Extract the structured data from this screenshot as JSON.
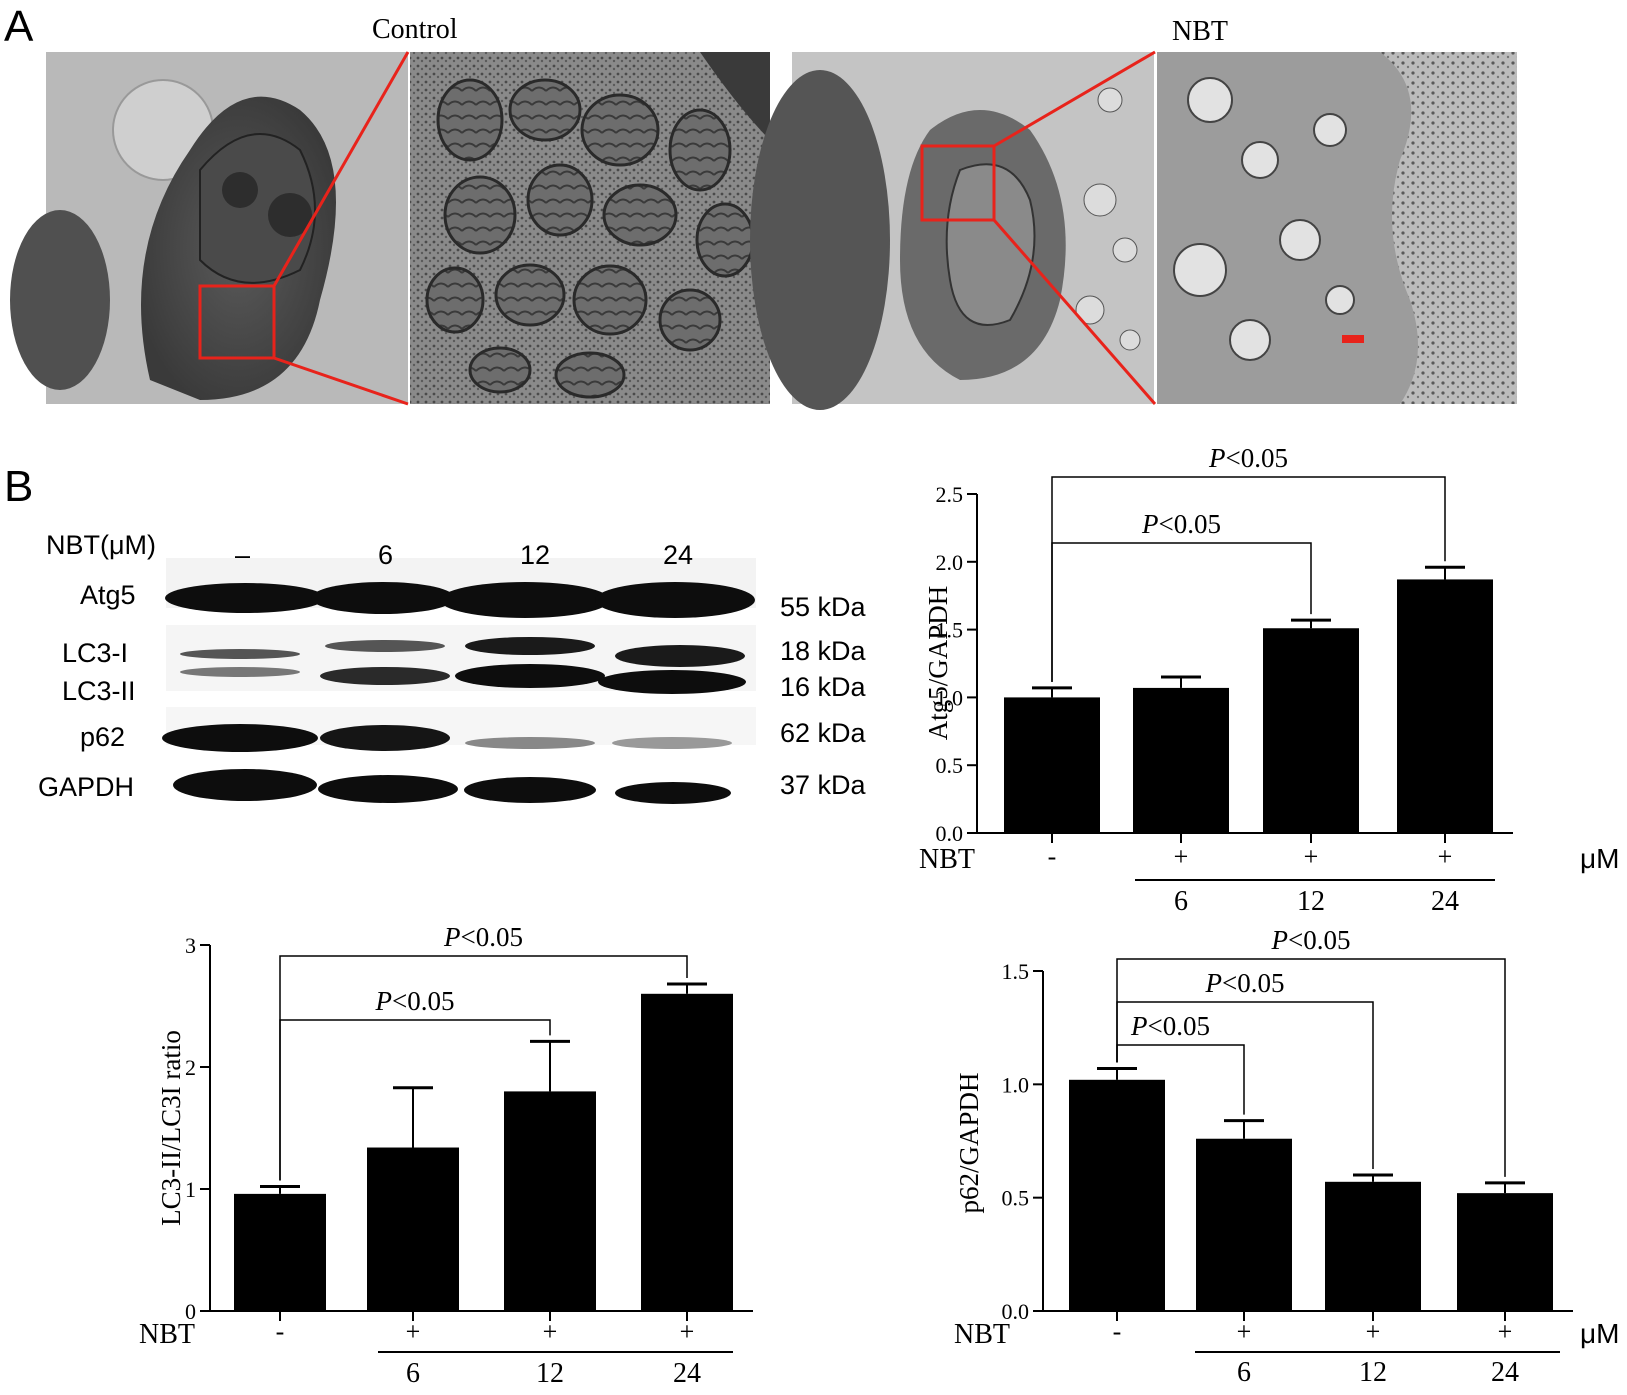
{
  "panel_a": {
    "letter": "A",
    "control_title": "Control",
    "nbt_title": "NBT"
  },
  "panel_b": {
    "letter": "B",
    "blot": {
      "header_label": "NBT(μM)",
      "lanes": [
        "–",
        "6",
        "12",
        "24"
      ],
      "rows": [
        {
          "label": "Atg5",
          "kda": "55 kDa"
        },
        {
          "label": "LC3-I",
          "kda": "18 kDa"
        },
        {
          "label": "LC3-II",
          "kda": "16 kDa"
        },
        {
          "label": "p62",
          "kda": "62 kDa"
        },
        {
          "label": "GAPDH",
          "kda": "37 kDa"
        }
      ]
    }
  },
  "colors": {
    "bar": "#000000",
    "roi": "#e8231b",
    "em_bg": "#bdbdbd"
  },
  "chart_data": [
    {
      "type": "bar",
      "ylabel": "Atg5/GAPDH",
      "ylim": [
        0,
        2.5
      ],
      "yticks": [
        "0.0",
        "0.5",
        "1.0",
        "1.5",
        "2.0",
        "2.5"
      ],
      "categories": [
        "-",
        "6",
        "12",
        "24"
      ],
      "values": [
        1.0,
        1.07,
        1.51,
        1.87
      ],
      "errors": [
        0.07,
        0.08,
        0.06,
        0.09
      ],
      "treatment_label": "NBT",
      "treatment_marks": [
        "-",
        "+",
        "+",
        "+"
      ],
      "unit": "μM",
      "significance": [
        {
          "from": 0,
          "to": 2,
          "label": "P<0.05"
        },
        {
          "from": 0,
          "to": 3,
          "label": "P<0.05"
        }
      ]
    },
    {
      "type": "bar",
      "ylabel": "LC3-II/LC3I ratio",
      "ylim": [
        0,
        3
      ],
      "yticks": [
        "0",
        "1",
        "2",
        "3"
      ],
      "categories": [
        "-",
        "6",
        "12",
        "24"
      ],
      "values": [
        0.96,
        1.34,
        1.8,
        2.6
      ],
      "errors": [
        0.06,
        0.49,
        0.41,
        0.08
      ],
      "treatment_label": "NBT",
      "treatment_marks": [
        "-",
        "+",
        "+",
        "+"
      ],
      "unit": "",
      "significance": [
        {
          "from": 0,
          "to": 2,
          "label": "P<0.05"
        },
        {
          "from": 0,
          "to": 3,
          "label": "P<0.05"
        }
      ]
    },
    {
      "type": "bar",
      "ylabel": "p62/GAPDH",
      "ylim": [
        0,
        1.5
      ],
      "yticks": [
        "0.0",
        "0.5",
        "1.0",
        "1.5"
      ],
      "categories": [
        "-",
        "6",
        "12",
        "24"
      ],
      "values": [
        1.02,
        0.76,
        0.57,
        0.52
      ],
      "errors": [
        0.05,
        0.08,
        0.03,
        0.045
      ],
      "treatment_label": "NBT",
      "treatment_marks": [
        "-",
        "+",
        "+",
        "+"
      ],
      "unit": "μM",
      "significance": [
        {
          "from": 0,
          "to": 1,
          "label": "P<0.05"
        },
        {
          "from": 0,
          "to": 2,
          "label": "P<0.05"
        },
        {
          "from": 0,
          "to": 3,
          "label": "P<0.05"
        }
      ]
    }
  ]
}
